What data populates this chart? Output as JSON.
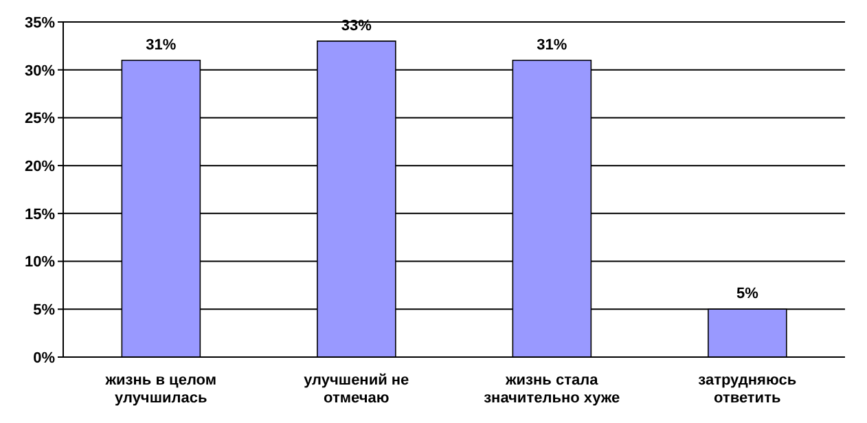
{
  "chart_data": {
    "type": "bar",
    "categories": [
      "жизнь в целом улучшилась",
      "улучшений не отмечаю",
      "жизнь стала значительно хуже",
      "затрудняюсь ответить"
    ],
    "values": [
      31,
      33,
      31,
      5
    ],
    "value_labels": [
      "31%",
      "33%",
      "31%",
      "5%"
    ],
    "color": "#9999ff",
    "ylim": [
      0,
      35
    ],
    "yticks": [
      {
        "value": 0,
        "label": "0%"
      },
      {
        "value": 5,
        "label": "5%"
      },
      {
        "value": 10,
        "label": "10%"
      },
      {
        "value": 15,
        "label": "15%"
      },
      {
        "value": 20,
        "label": "20%"
      },
      {
        "value": 25,
        "label": "25%"
      },
      {
        "value": 30,
        "label": "30%"
      },
      {
        "value": 35,
        "label": "35%"
      }
    ],
    "grid": "y"
  }
}
